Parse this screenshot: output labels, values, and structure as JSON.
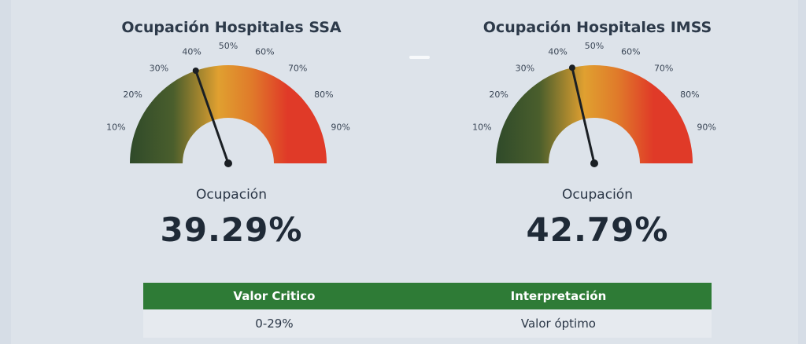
{
  "gauges": [
    {
      "title": "Ocupación Hospitales SSA",
      "metric_label": "Ocupación",
      "value_text": "39.29%",
      "tick_labels": [
        "10%",
        "20%",
        "30%",
        "40%",
        "50%",
        "60%",
        "70%",
        "80%",
        "90%"
      ]
    },
    {
      "title": "Ocupación Hospitales IMSS",
      "metric_label": "Ocupación",
      "value_text": "42.79%",
      "tick_labels": [
        "10%",
        "20%",
        "30%",
        "40%",
        "50%",
        "60%",
        "70%",
        "80%",
        "90%"
      ]
    }
  ],
  "chart_data": [
    {
      "type": "gauge",
      "title": "Ocupación Hospitales SSA",
      "value": 39.29,
      "unit": "%",
      "range": [
        0,
        100
      ],
      "colors": [
        "#2f4a2a",
        "#e0a030",
        "#e03a28"
      ]
    },
    {
      "type": "gauge",
      "title": "Ocupación Hospitales IMSS",
      "value": 42.79,
      "unit": "%",
      "range": [
        0,
        100
      ],
      "colors": [
        "#2f4a2a",
        "#e0a030",
        "#e03a28"
      ]
    }
  ],
  "table": {
    "headers": [
      "Valor Critico",
      "Interpretación"
    ],
    "rows": [
      [
        "0-29%",
        "Valor óptimo"
      ]
    ],
    "header_color": "#2e7b36"
  }
}
